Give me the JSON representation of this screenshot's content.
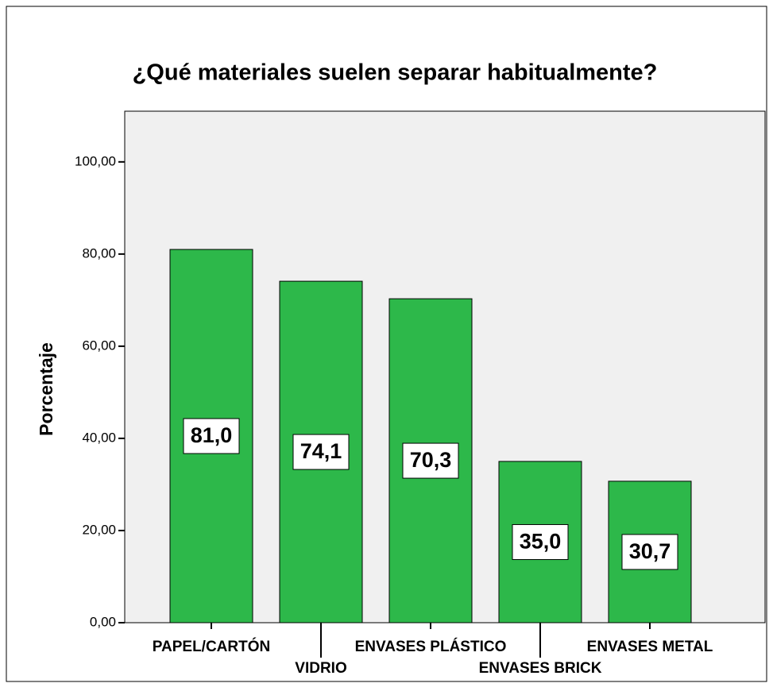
{
  "chart_data": {
    "type": "bar",
    "title": "¿Qué materiales suelen separar habitualmente?",
    "y_label": "Porcentaje",
    "categories": [
      "PAPEL/CARTÓN",
      "VIDRIO",
      "ENVASES PLÁSTICO",
      "ENVASES BRICK",
      "ENVASES METAL"
    ],
    "values": [
      81.0,
      74.1,
      70.3,
      35.0,
      30.7
    ],
    "value_labels": [
      "81,0",
      "74,1",
      "70,3",
      "35,0",
      "30,7"
    ],
    "color": "#2db84a",
    "ylim": [
      0,
      111
    ],
    "yticks": [
      {
        "value": 0,
        "label": "0,00"
      },
      {
        "value": 20,
        "label": "20,00"
      },
      {
        "value": 40,
        "label": "40,00"
      },
      {
        "value": 60,
        "label": "60,00"
      },
      {
        "value": 80,
        "label": "80,00"
      },
      {
        "value": 100,
        "label": "100,00"
      }
    ],
    "grid": false
  }
}
